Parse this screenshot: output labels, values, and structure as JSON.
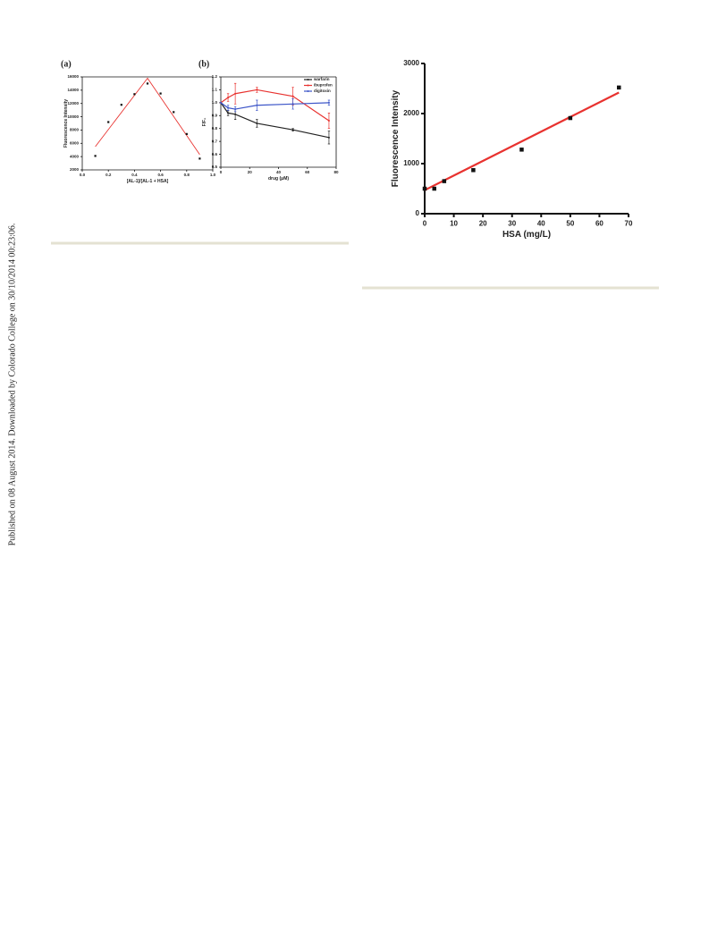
{
  "sidebar": "Published on 08 August 2014. Downloaded by Colorado College on 30/10/2014 00:23:06.",
  "chart_data": [
    {
      "type": "scatter",
      "panel_label": "(a)",
      "xlabel": "[AL-1]/[AL-1 + HSA]",
      "ylabel": "Fluorescence Intensity",
      "xlim": [
        0,
        1
      ],
      "ylim": [
        2000,
        16000
      ],
      "xticks": [
        {
          "value": 0,
          "label": "0.0"
        },
        0.2,
        0.4,
        0.6,
        0.8,
        {
          "value": 1,
          "label": "1.0"
        }
      ],
      "yticks": [
        2000,
        4000,
        6000,
        8000,
        10000,
        12000,
        14000,
        16000
      ],
      "box": true,
      "series": [
        {
          "color": "#111111",
          "x": [
            0.1,
            0.2,
            0.3,
            0.4,
            0.5,
            0.6,
            0.7,
            0.8,
            0.9
          ],
          "values": [
            4100,
            9200,
            11800,
            13400,
            15000,
            13500,
            10700,
            7400,
            3700
          ]
        }
      ],
      "fit": {
        "color": "#e8322f",
        "x": [
          0.1,
          0.5,
          0.9
        ],
        "values": [
          5500,
          15800,
          4300
        ]
      }
    },
    {
      "type": "line",
      "panel_label": "(b)",
      "xlabel": "drug (μM)",
      "ylabel": "F/F₀",
      "xlim": [
        0,
        80
      ],
      "ylim": [
        0.5,
        1.2
      ],
      "xticks": [
        0,
        20,
        40,
        60,
        80
      ],
      "yticks": [
        0.5,
        0.6,
        0.7,
        0.8,
        0.9,
        {
          "value": 1,
          "label": "1.0"
        },
        1.1,
        1.2
      ],
      "box": true,
      "legend": "upper right",
      "series": [
        {
          "name": "warfarin",
          "color": "#222222",
          "x": [
            0,
            5,
            10,
            25,
            50,
            75
          ],
          "values": [
            1.0,
            0.92,
            0.91,
            0.84,
            0.79,
            0.73
          ],
          "errors": [
            0,
            0.02,
            0.04,
            0.03,
            0.01,
            0.05
          ]
        },
        {
          "name": "ibuprofen",
          "color": "#e8322f",
          "x": [
            0,
            5,
            10,
            25,
            50,
            75
          ],
          "values": [
            1.0,
            1.04,
            1.07,
            1.1,
            1.05,
            0.86
          ],
          "errors": [
            0,
            0.03,
            0.08,
            0.02,
            0.07,
            0.06
          ]
        },
        {
          "name": "digitoxin",
          "color": "#3c55c8",
          "x": [
            0,
            5,
            10,
            25,
            50,
            75
          ],
          "values": [
            1.0,
            0.96,
            0.95,
            0.98,
            0.99,
            1.0
          ],
          "errors": [
            0,
            0.02,
            0.02,
            0.04,
            0.04,
            0.02
          ]
        }
      ]
    },
    {
      "type": "scatter",
      "xlabel": "HSA (mg/L)",
      "ylabel": "Fluorescence Intensity",
      "xlim": [
        0,
        70
      ],
      "ylim": [
        0,
        3000
      ],
      "xticks": [
        0,
        10,
        20,
        30,
        40,
        50,
        60,
        70
      ],
      "yticks": [
        0,
        1000,
        2000,
        3000
      ],
      "box": false,
      "series": [
        {
          "color": "#111111",
          "x": [
            0,
            3.3,
            6.7,
            16.7,
            33.3,
            50,
            66.7
          ],
          "values": [
            500,
            500,
            650,
            870,
            1280,
            1910,
            2520
          ]
        }
      ],
      "fit": {
        "color": "#e8322f",
        "x": [
          0,
          66.7
        ],
        "values": [
          470,
          2420
        ]
      }
    }
  ]
}
